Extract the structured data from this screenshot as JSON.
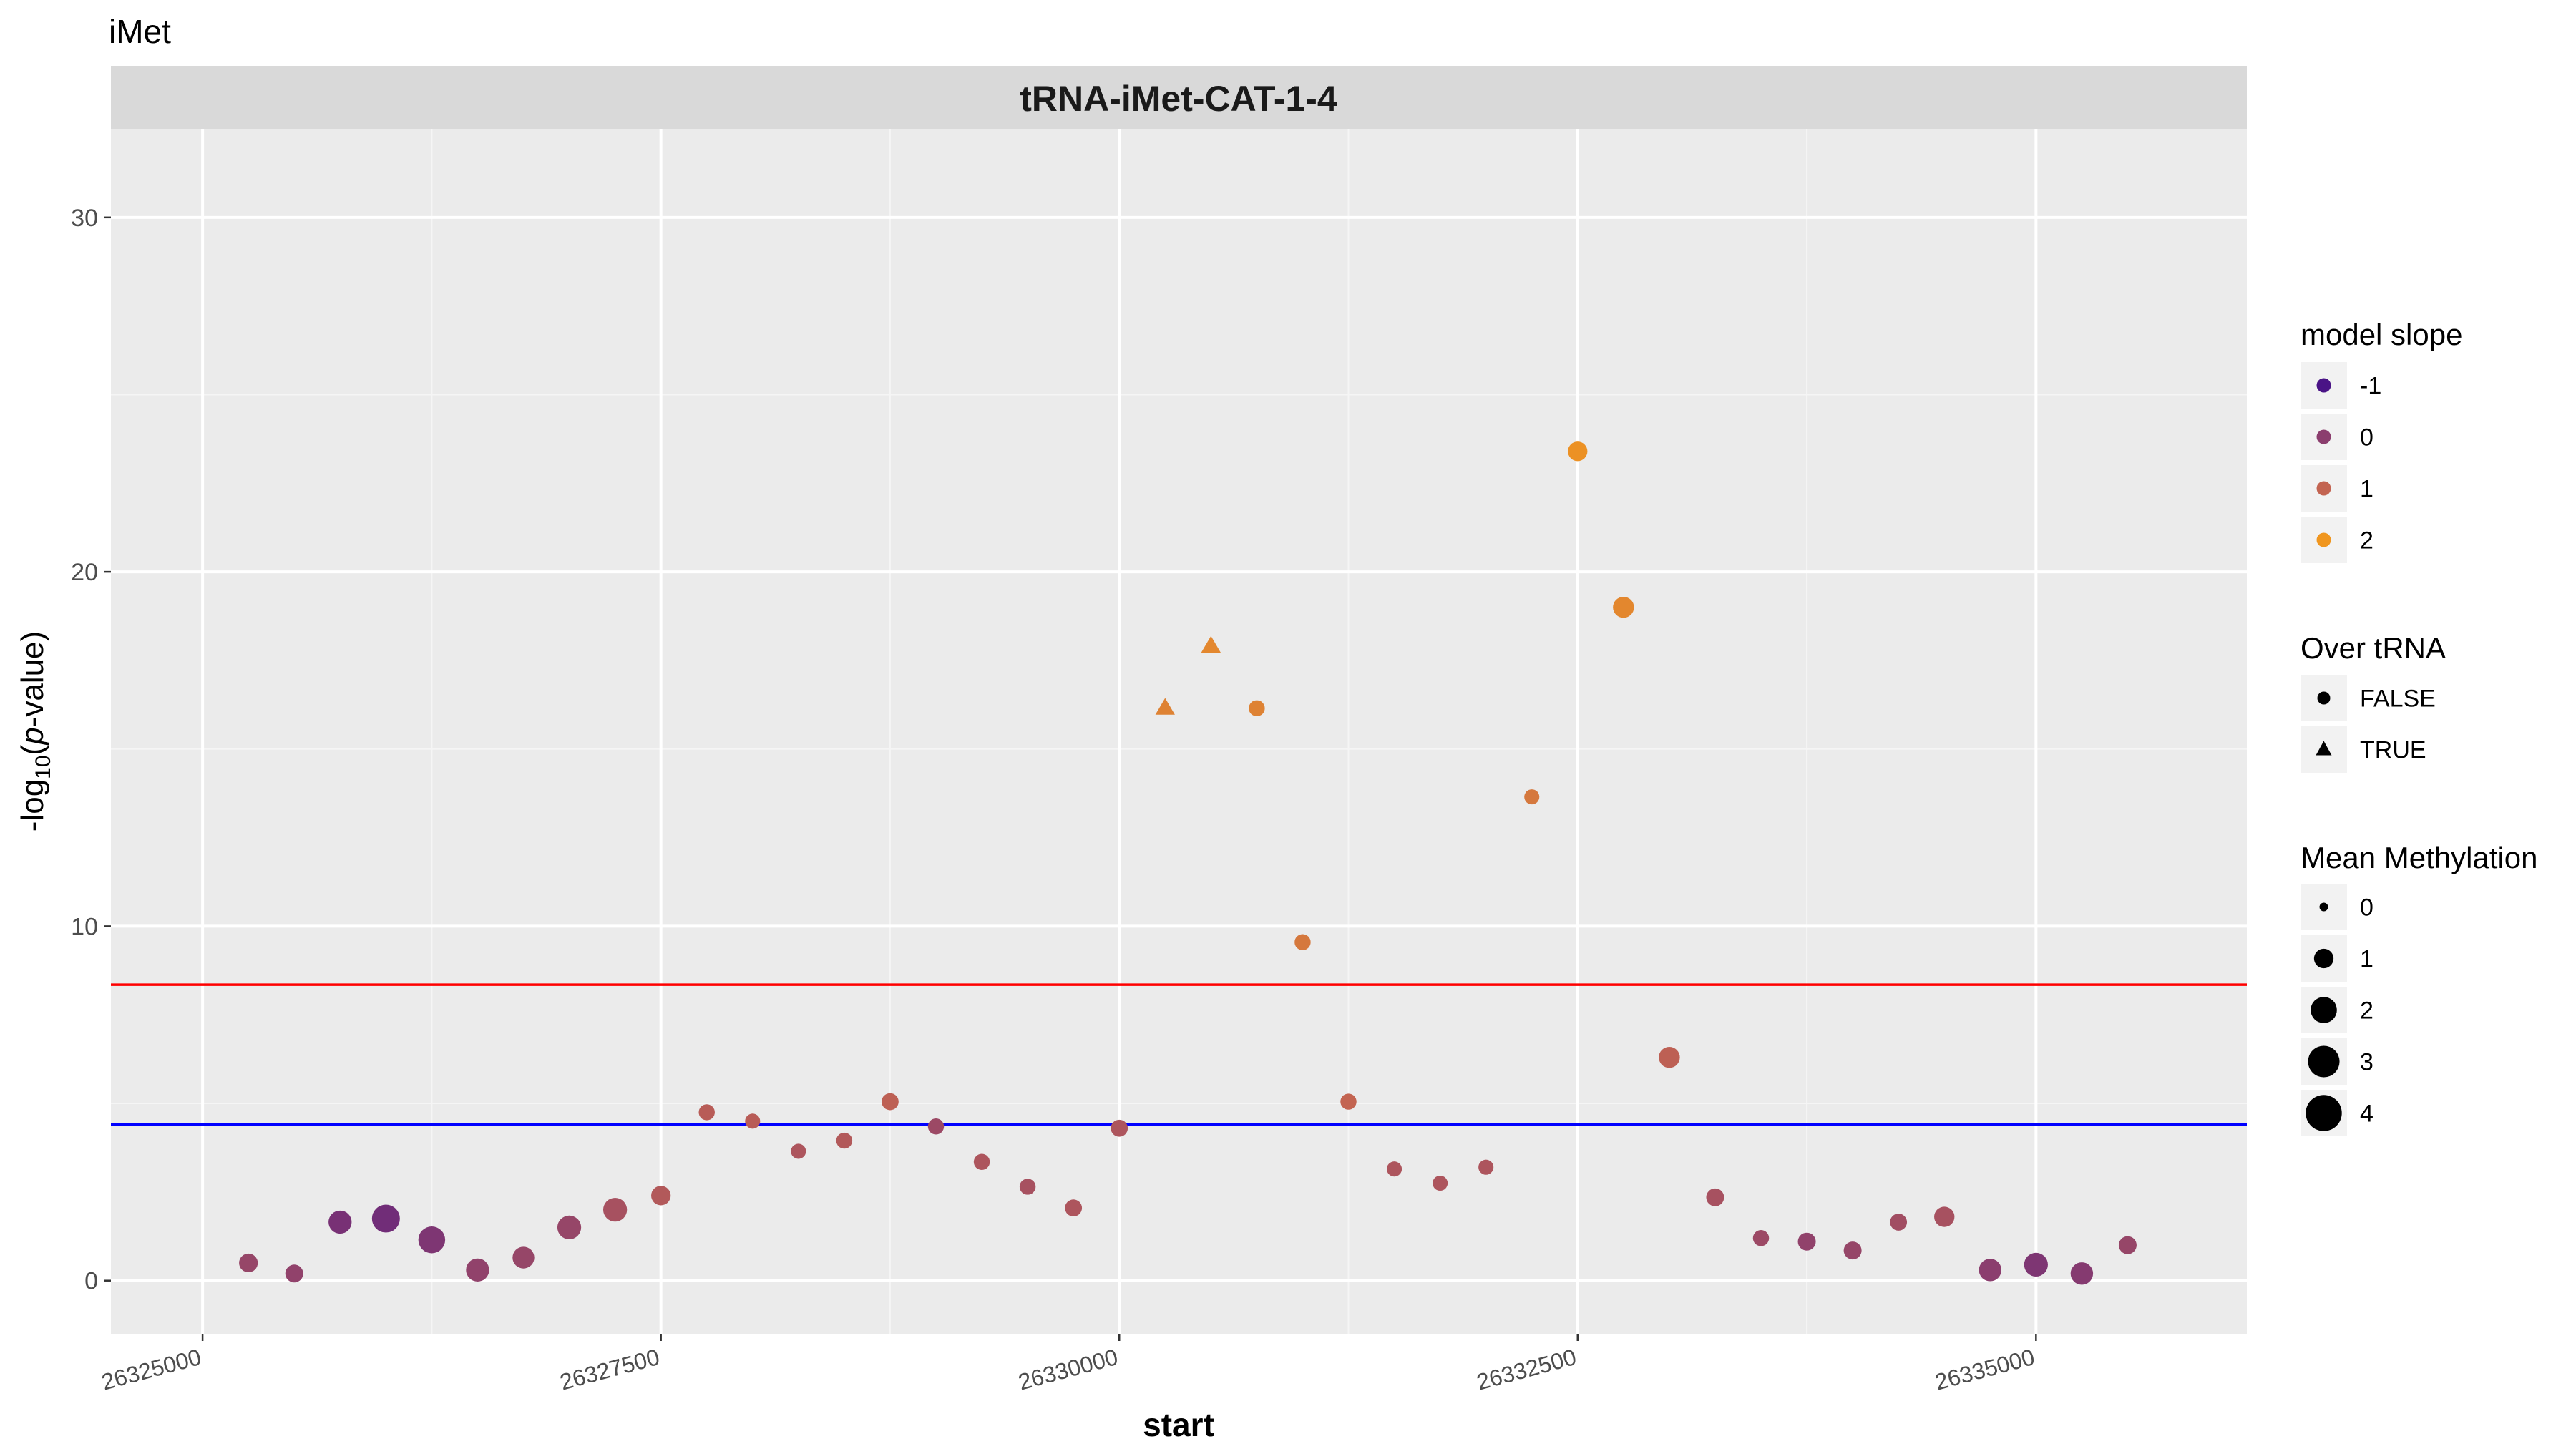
{
  "chart_data": {
    "type": "scatter",
    "title": "iMet",
    "facet_label": "tRNA-iMet-CAT-1-4",
    "xlabel": "start",
    "ylabel_prefix": "-log",
    "ylabel_sub": "10",
    "ylabel_open": "(",
    "ylabel_italic": "p",
    "ylabel_suffix": "-value)",
    "xlim": [
      24880000,
      26336000
    ],
    "ylim": [
      -1.5,
      32.5
    ],
    "x_ticks": [
      {
        "value": 26325000,
        "label": "26325000"
      },
      {
        "value": 26327500,
        "label": "26327500"
      },
      {
        "value": 26330000,
        "label": "26330000"
      },
      {
        "value": 26332500,
        "label": "26332500"
      },
      {
        "value": 26335000,
        "label": "26335000"
      }
    ],
    "y_ticks": [
      {
        "value": 0,
        "label": "0"
      },
      {
        "value": 10,
        "label": "10"
      },
      {
        "value": 20,
        "label": "20"
      },
      {
        "value": 30,
        "label": "30"
      }
    ],
    "grid": true,
    "hlines": [
      {
        "y": 8.35,
        "color": "#ff0000"
      },
      {
        "y": 4.4,
        "color": "#0000ff"
      }
    ],
    "points": [
      {
        "x": 26325250,
        "y": 0.5,
        "slope": 0.2,
        "methylation": 0.9,
        "over_trna": false
      },
      {
        "x": 26325500,
        "y": 0.2,
        "slope": 0.1,
        "methylation": 0.8,
        "over_trna": false
      },
      {
        "x": 26325750,
        "y": 1.65,
        "slope": -0.3,
        "methylation": 1.5,
        "over_trna": false
      },
      {
        "x": 26326000,
        "y": 1.75,
        "slope": -0.4,
        "methylation": 2.3,
        "over_trna": false
      },
      {
        "x": 26326250,
        "y": 1.15,
        "slope": -0.2,
        "methylation": 2.1,
        "over_trna": false
      },
      {
        "x": 26326500,
        "y": 0.3,
        "slope": 0.1,
        "methylation": 1.5,
        "over_trna": false
      },
      {
        "x": 26326750,
        "y": 0.65,
        "slope": 0.2,
        "methylation": 1.3,
        "over_trna": false
      },
      {
        "x": 26327000,
        "y": 1.5,
        "slope": 0.2,
        "methylation": 1.6,
        "over_trna": false
      },
      {
        "x": 26327250,
        "y": 2.0,
        "slope": 0.5,
        "methylation": 1.6,
        "over_trna": false
      },
      {
        "x": 26327500,
        "y": 2.4,
        "slope": 0.7,
        "methylation": 1.0,
        "over_trna": false
      },
      {
        "x": 26327750,
        "y": 4.75,
        "slope": 0.8,
        "methylation": 0.6,
        "over_trna": false
      },
      {
        "x": 26328000,
        "y": 4.5,
        "slope": 0.8,
        "methylation": 0.5,
        "over_trna": false
      },
      {
        "x": 26328250,
        "y": 3.65,
        "slope": 0.6,
        "methylation": 0.5,
        "over_trna": false
      },
      {
        "x": 26328500,
        "y": 3.95,
        "slope": 0.7,
        "methylation": 0.6,
        "over_trna": false
      },
      {
        "x": 26328750,
        "y": 5.05,
        "slope": 0.9,
        "methylation": 0.7,
        "over_trna": false
      },
      {
        "x": 26329000,
        "y": 4.35,
        "slope": 0.3,
        "methylation": 0.6,
        "over_trna": false
      },
      {
        "x": 26329250,
        "y": 3.35,
        "slope": 0.6,
        "methylation": 0.6,
        "over_trna": false
      },
      {
        "x": 26329500,
        "y": 2.65,
        "slope": 0.5,
        "methylation": 0.6,
        "over_trna": false
      },
      {
        "x": 26329750,
        "y": 2.05,
        "slope": 0.6,
        "methylation": 0.7,
        "over_trna": false
      },
      {
        "x": 26330000,
        "y": 4.3,
        "slope": 0.6,
        "methylation": 0.7,
        "over_trna": false
      },
      {
        "x": 26330250,
        "y": 16.15,
        "slope": 1.6,
        "methylation": 0.8,
        "over_trna": true
      },
      {
        "x": 26330500,
        "y": 17.9,
        "slope": 1.7,
        "methylation": 0.8,
        "over_trna": true
      },
      {
        "x": 26330750,
        "y": 16.15,
        "slope": 1.6,
        "methylation": 0.6,
        "over_trna": false
      },
      {
        "x": 26331000,
        "y": 9.55,
        "slope": 1.4,
        "methylation": 0.6,
        "over_trna": false
      },
      {
        "x": 26331250,
        "y": 5.05,
        "slope": 1.0,
        "methylation": 0.6,
        "over_trna": false
      },
      {
        "x": 26331500,
        "y": 3.15,
        "slope": 0.6,
        "methylation": 0.5,
        "over_trna": false
      },
      {
        "x": 26331750,
        "y": 2.75,
        "slope": 0.6,
        "methylation": 0.5,
        "over_trna": false
      },
      {
        "x": 26332000,
        "y": 3.2,
        "slope": 0.6,
        "methylation": 0.5,
        "over_trna": false
      },
      {
        "x": 26332250,
        "y": 13.65,
        "slope": 1.4,
        "methylation": 0.5,
        "over_trna": false
      },
      {
        "x": 26332500,
        "y": 23.4,
        "slope": 1.9,
        "methylation": 1.0,
        "over_trna": false
      },
      {
        "x": 26332750,
        "y": 19.0,
        "slope": 1.7,
        "methylation": 1.2,
        "over_trna": false
      },
      {
        "x": 26333000,
        "y": 6.3,
        "slope": 0.9,
        "methylation": 1.2,
        "over_trna": false
      },
      {
        "x": 26333250,
        "y": 2.35,
        "slope": 0.5,
        "methylation": 0.8,
        "over_trna": false
      },
      {
        "x": 26333500,
        "y": 1.2,
        "slope": 0.3,
        "methylation": 0.6,
        "over_trna": false
      },
      {
        "x": 26333750,
        "y": 1.1,
        "slope": 0.1,
        "methylation": 0.8,
        "over_trna": false
      },
      {
        "x": 26334000,
        "y": 0.85,
        "slope": 0.2,
        "methylation": 0.8,
        "over_trna": false
      },
      {
        "x": 26334250,
        "y": 1.65,
        "slope": 0.4,
        "methylation": 0.7,
        "over_trna": false
      },
      {
        "x": 26334500,
        "y": 1.8,
        "slope": 0.5,
        "methylation": 1.1,
        "over_trna": false
      },
      {
        "x": 26334750,
        "y": 0.3,
        "slope": 0.0,
        "methylation": 1.4,
        "over_trna": false
      },
      {
        "x": 26335000,
        "y": 0.45,
        "slope": -0.2,
        "methylation": 1.6,
        "over_trna": false
      },
      {
        "x": 26335250,
        "y": 0.2,
        "slope": -0.1,
        "methylation": 1.4,
        "over_trna": false
      },
      {
        "x": 26335500,
        "y": 1.0,
        "slope": 0.2,
        "methylation": 0.8,
        "over_trna": false
      }
    ],
    "legends": {
      "color": {
        "title": "model slope",
        "entries": [
          {
            "label": "-1",
            "value": -1,
            "color": "#4a1486"
          },
          {
            "label": "0",
            "value": 0,
            "color": "#8b3e6e"
          },
          {
            "label": "1",
            "value": 1,
            "color": "#c36451"
          },
          {
            "label": "2",
            "value": 2,
            "color": "#f0961f"
          }
        ]
      },
      "shape": {
        "title": "Over tRNA",
        "entries": [
          {
            "label": "FALSE",
            "shape": "circle"
          },
          {
            "label": "TRUE",
            "shape": "triangle"
          }
        ]
      },
      "size": {
        "title": "Mean Methylation",
        "entries": [
          {
            "label": "0",
            "value": 0
          },
          {
            "label": "1",
            "value": 1
          },
          {
            "label": "2",
            "value": 2
          },
          {
            "label": "3",
            "value": 3
          },
          {
            "label": "4",
            "value": 4
          }
        ]
      }
    }
  }
}
